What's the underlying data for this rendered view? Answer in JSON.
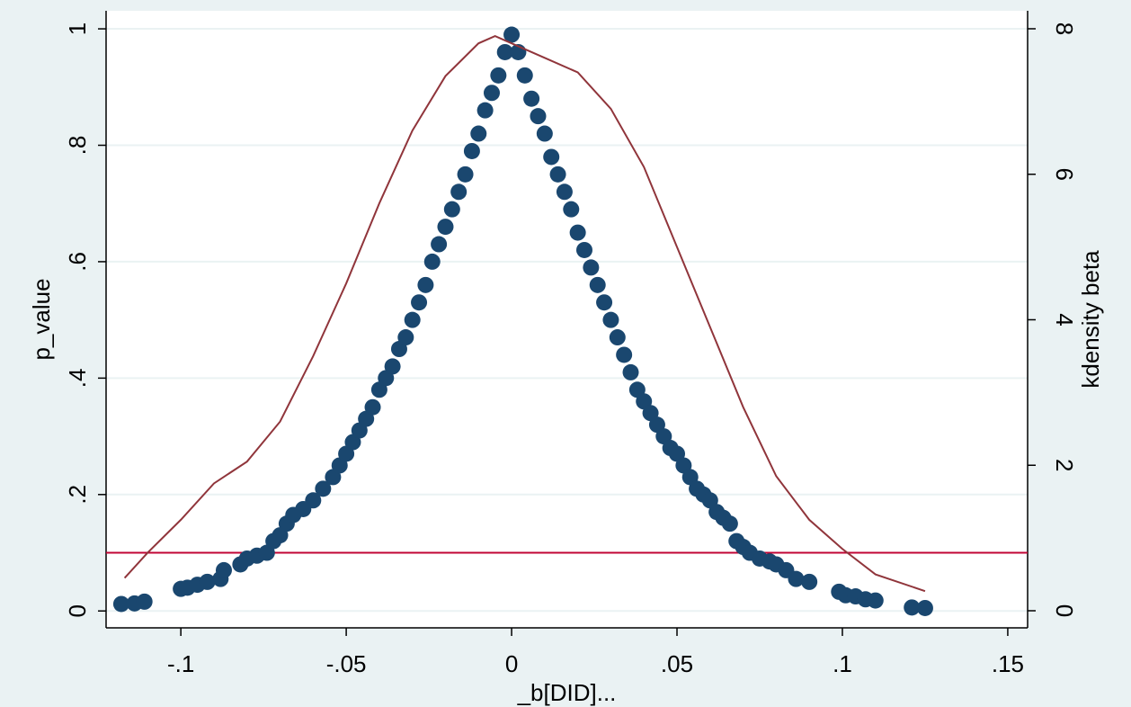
{
  "chart_data": {
    "type": "scatter",
    "xlabel": "_b[DID]...",
    "ylabel": "p_value",
    "y2label": "kdensity beta",
    "xlim": [
      -0.1226,
      0.156
    ],
    "xticks": [
      {
        "value": -0.1,
        "label": "-.1"
      },
      {
        "value": -0.05,
        "label": "-.05"
      },
      0,
      {
        "value": 0.05,
        "label": ".05"
      },
      {
        "value": 0.1,
        "label": ".1"
      },
      {
        "value": 0.15,
        "label": ".15"
      }
    ],
    "ylim": [
      -0.029,
      1.031
    ],
    "yticks": [
      0,
      {
        "value": 0.2,
        "label": ".2"
      },
      {
        "value": 0.4,
        "label": ".4"
      },
      {
        "value": 0.6,
        "label": ".6"
      },
      {
        "value": 0.8,
        "label": ".8"
      },
      1
    ],
    "y2lim": [
      -0.235,
      8.247
    ],
    "y2ticks": [
      0,
      2,
      4,
      6,
      8
    ],
    "grid": true,
    "reference_line": {
      "y": 0.1,
      "color": "#c10534"
    },
    "series": [
      {
        "type": "scatter",
        "color": "#1a476f",
        "x": [
          -0.118,
          -0.114,
          -0.111,
          -0.1,
          -0.098,
          -0.095,
          -0.092,
          -0.088,
          -0.087,
          -0.082,
          -0.08,
          -0.077,
          -0.074,
          -0.072,
          -0.07,
          -0.068,
          -0.066,
          -0.063,
          -0.06,
          -0.057,
          -0.054,
          -0.052,
          -0.05,
          -0.048,
          -0.046,
          -0.044,
          -0.042,
          -0.04,
          -0.038,
          -0.036,
          -0.034,
          -0.032,
          -0.03,
          -0.028,
          -0.026,
          -0.024,
          -0.022,
          -0.02,
          -0.018,
          -0.016,
          -0.014,
          -0.012,
          -0.01,
          -0.008,
          -0.006,
          -0.004,
          -0.002,
          0,
          0.002,
          0.004,
          0.006,
          0.008,
          0.01,
          0.012,
          0.014,
          0.016,
          0.018,
          0.02,
          0.022,
          0.024,
          0.026,
          0.028,
          0.03,
          0.032,
          0.034,
          0.036,
          0.038,
          0.04,
          0.042,
          0.044,
          0.046,
          0.048,
          0.05,
          0.052,
          0.054,
          0.056,
          0.058,
          0.06,
          0.062,
          0.064,
          0.066,
          0.068,
          0.07,
          0.072,
          0.075,
          0.078,
          0.08,
          0.083,
          0.086,
          0.09,
          0.099,
          0.101,
          0.104,
          0.107,
          0.11,
          0.121,
          0.125
        ],
        "values": [
          0.012,
          0.013,
          0.016,
          0.038,
          0.04,
          0.045,
          0.05,
          0.055,
          0.07,
          0.08,
          0.09,
          0.095,
          0.1,
          0.12,
          0.13,
          0.15,
          0.165,
          0.175,
          0.19,
          0.21,
          0.23,
          0.25,
          0.27,
          0.29,
          0.31,
          0.33,
          0.35,
          0.38,
          0.4,
          0.42,
          0.45,
          0.47,
          0.5,
          0.53,
          0.56,
          0.6,
          0.63,
          0.66,
          0.69,
          0.72,
          0.75,
          0.79,
          0.82,
          0.86,
          0.89,
          0.92,
          0.96,
          0.99,
          0.96,
          0.92,
          0.88,
          0.85,
          0.82,
          0.78,
          0.75,
          0.72,
          0.69,
          0.65,
          0.62,
          0.59,
          0.56,
          0.53,
          0.5,
          0.47,
          0.44,
          0.41,
          0.38,
          0.36,
          0.34,
          0.32,
          0.3,
          0.28,
          0.27,
          0.25,
          0.23,
          0.21,
          0.2,
          0.19,
          0.17,
          0.16,
          0.15,
          0.12,
          0.11,
          0.1,
          0.09,
          0.085,
          0.08,
          0.07,
          0.055,
          0.05,
          0.033,
          0.027,
          0.025,
          0.02,
          0.018,
          0.006,
          0.005
        ]
      },
      {
        "type": "line",
        "axis": "y2",
        "color": "#90353b",
        "x": [
          -0.117,
          -0.11,
          -0.1,
          -0.09,
          -0.08,
          -0.07,
          -0.06,
          -0.05,
          -0.04,
          -0.03,
          -0.02,
          -0.01,
          -0.005,
          0,
          0.01,
          0.02,
          0.03,
          0.04,
          0.05,
          0.06,
          0.07,
          0.08,
          0.09,
          0.1,
          0.11,
          0.125
        ],
        "values": [
          0.45,
          0.8,
          1.25,
          1.75,
          2.05,
          2.6,
          3.5,
          4.5,
          5.6,
          6.6,
          7.35,
          7.8,
          7.9,
          7.8,
          7.6,
          7.4,
          6.9,
          6.1,
          5.0,
          3.9,
          2.8,
          1.85,
          1.25,
          0.85,
          0.5,
          0.27
        ]
      }
    ]
  }
}
